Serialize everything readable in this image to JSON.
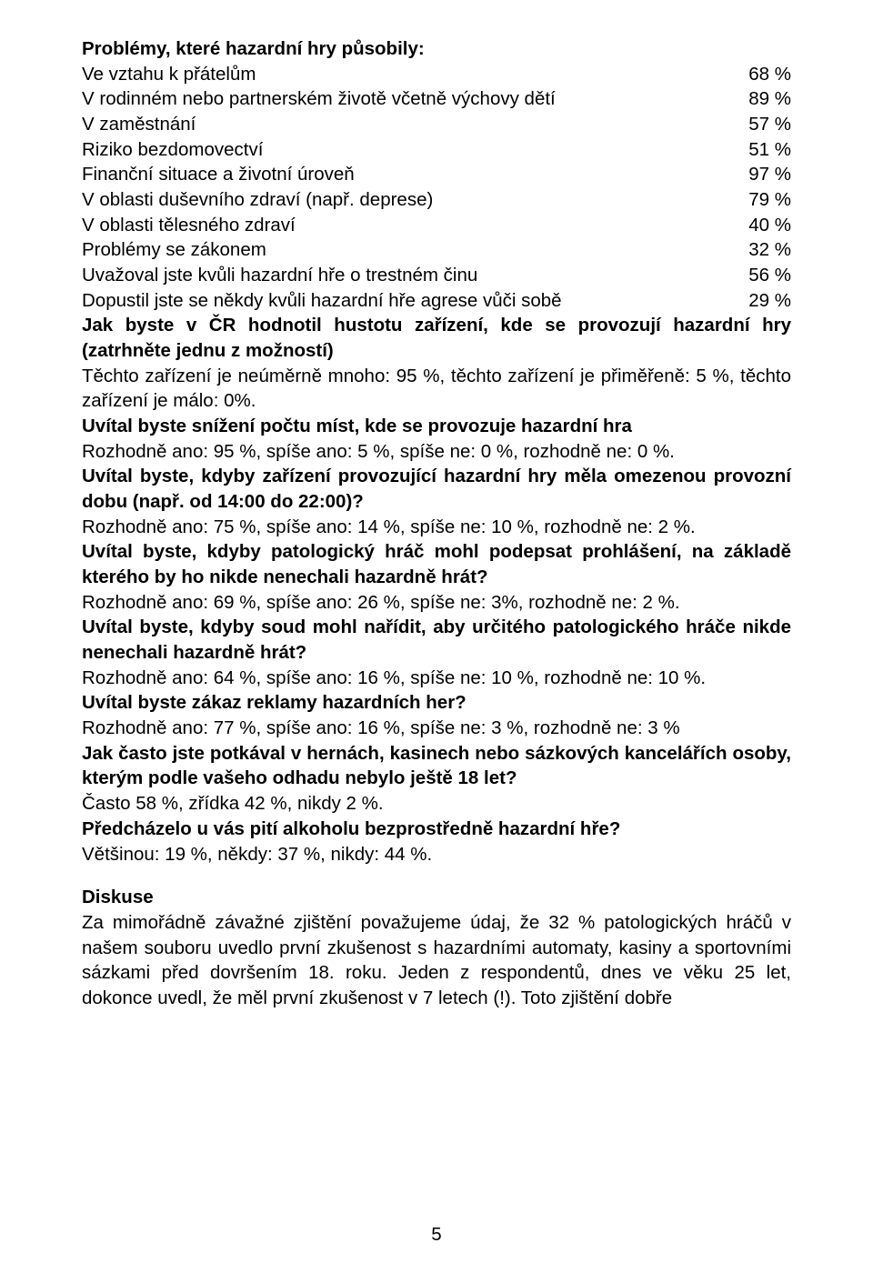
{
  "heading_problems": "Problémy, které hazardní hry působily:",
  "table_rows": [
    {
      "label": "Ve vztahu k přátelům",
      "value": "68 %"
    },
    {
      "label": "V rodinném nebo partnerském životě včetně výchovy dětí",
      "value": "89 %"
    },
    {
      "label": "V zaměstnání",
      "value": "57 %"
    },
    {
      "label": "Riziko bezdomovectví",
      "value": "51 %"
    },
    {
      "label": "Finanční situace a životní úroveň",
      "value": "97 %"
    },
    {
      "label": "V oblasti duševního zdraví (např. deprese)",
      "value": "79 %"
    },
    {
      "label": "V oblasti tělesného zdraví",
      "value": "40 %"
    },
    {
      "label": "Problémy se zákonem",
      "value": "32 %"
    },
    {
      "label": "Uvažoval jste kvůli hazardní hře o trestném činu",
      "value": "56 %"
    },
    {
      "label": "Dopustil jste se někdy kvůli hazardní hře agrese vůči sobě",
      "value": "29 %"
    }
  ],
  "q1_bold": "Jak byste v ČR hodnotil hustotu zařízení, kde se provozují hazardní hry (zatrhněte jednu z možností)",
  "q1_text": "Těchto zařízení je neúměrně mnoho: 95 %, těchto zařízení je přiměřeně: 5 %, těchto zařízení je málo: 0%.",
  "q2_bold": "Uvítal byste snížení počtu míst, kde se provozuje hazardní hra",
  "q2_text": "Rozhodně ano: 95 %, spíše ano: 5 %, spíše ne: 0 %, rozhodně ne: 0 %.",
  "q3_bold": "Uvítal byste, kdyby zařízení provozující hazardní hry měla omezenou provozní dobu (např. od 14:00 do 22:00)?",
  "q3_text": "Rozhodně ano: 75 %, spíše ano: 14 %, spíše ne: 10 %, rozhodně ne: 2 %.",
  "q4_bold": "Uvítal byste, kdyby patologický hráč mohl podepsat prohlášení, na základě kterého by ho nikde nenechali hazardně hrát?",
  "q4_text": "Rozhodně ano: 69 %, spíše ano: 26 %, spíše ne: 3%, rozhodně ne: 2 %.",
  "q5_bold": "Uvítal byste, kdyby soud mohl nařídit, aby určitého patologického hráče nikde nenechali hazardně hrát?",
  "q5_text": "Rozhodně ano: 64 %, spíše ano: 16 %, spíše ne: 10 %, rozhodně ne: 10 %.",
  "q6_bold": "Uvítal byste zákaz reklamy hazardních her?",
  "q6_text": "Rozhodně ano: 77 %, spíše ano: 16 %, spíše ne: 3 %, rozhodně ne: 3 %",
  "q7_bold": "Jak často jste potkával v hernách, kasinech nebo sázkových kancelářích osoby, kterým podle vašeho odhadu nebylo ještě 18 let?",
  "q7_text": "Často 58 %, zřídka 42 %, nikdy 2 %.",
  "q8_bold": "Předcházelo u vás pití alkoholu bezprostředně hazardní hře?",
  "q8_text": "Většinou: 19 %, někdy: 37 %, nikdy: 44 %.",
  "discussion_heading": "Diskuse",
  "discussion_text": "Za mimořádně závažné zjištění považujeme údaj, že 32 % patologických hráčů v našem souboru uvedlo první zkušenost s hazardními automaty, kasiny a sportovními sázkami před dovršením 18. roku. Jeden z respondentů, dnes ve věku 25 let, dokonce uvedl, že měl první zkušenost v 7 letech (!). Toto zjištění dobře",
  "page_number": "5"
}
